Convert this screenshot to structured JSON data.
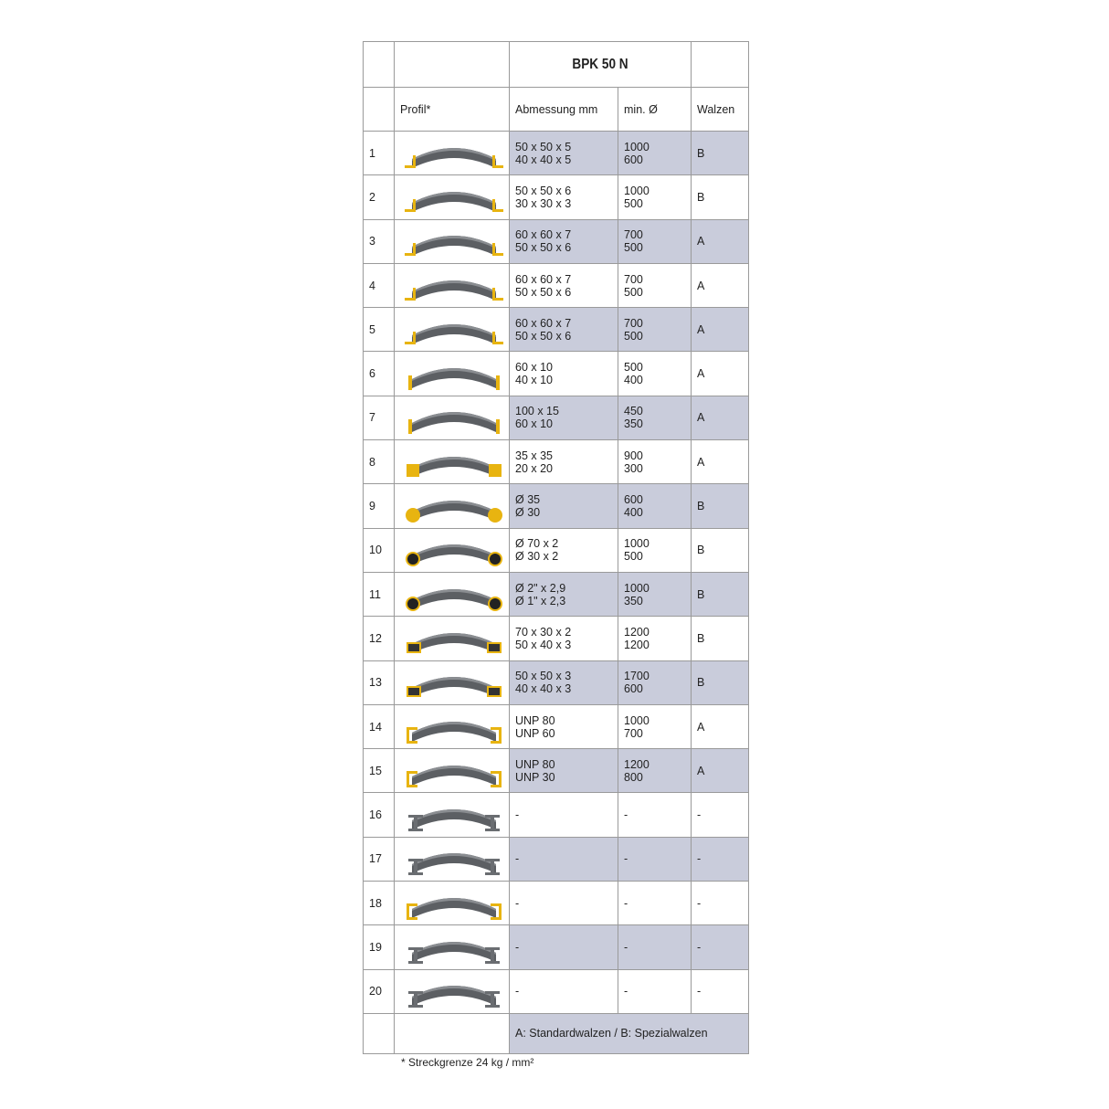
{
  "title": "BPK 50 N",
  "headers": {
    "profile": "Profil*",
    "dimension": "Abmessung mm",
    "min_diameter": "min. Ø",
    "rollers": "Walzen"
  },
  "shade_color": "#c9ccdb",
  "accent_color": "#f0b800",
  "rows": [
    {
      "n": "1",
      "icon": "angle-profile-icon",
      "d1": "50 x 50 x 5",
      "d2": "40 x 40 x 5",
      "m1": "1000",
      "m2": "600",
      "w": "B"
    },
    {
      "n": "2",
      "icon": "angle-profile-icon",
      "d1": "50 x 50 x 6",
      "d2": "30 x 30 x 3",
      "m1": "1000",
      "m2": "500",
      "w": "B"
    },
    {
      "n": "3",
      "icon": "angle-profile-icon",
      "d1": "60 x 60 x 7",
      "d2": "50 x 50 x 6",
      "m1": "700",
      "m2": "500",
      "w": "A"
    },
    {
      "n": "4",
      "icon": "angle-profile-icon",
      "d1": "60 x 60 x 7",
      "d2": "50 x 50 x 6",
      "m1": "700",
      "m2": "500",
      "w": "A"
    },
    {
      "n": "5",
      "icon": "angle-profile-icon",
      "d1": "60 x 60 x 7",
      "d2": "50 x 50 x 6",
      "m1": "700",
      "m2": "500",
      "w": "A"
    },
    {
      "n": "6",
      "icon": "flat-bar-profile-icon",
      "d1": "60 x 10",
      "d2": "40 x 10",
      "m1": "500",
      "m2": "400",
      "w": "A"
    },
    {
      "n": "7",
      "icon": "flat-bar-profile-icon",
      "d1": "100 x 15",
      "d2": "60 x 10",
      "m1": "450",
      "m2": "350",
      "w": "A"
    },
    {
      "n": "8",
      "icon": "square-bar-profile-icon",
      "d1": "35 x 35",
      "d2": "20 x 20",
      "m1": "900",
      "m2": "300",
      "w": "A"
    },
    {
      "n": "9",
      "icon": "round-bar-profile-icon",
      "d1": "Ø 35",
      "d2": "Ø 30",
      "m1": "600",
      "m2": "400",
      "w": "B"
    },
    {
      "n": "10",
      "icon": "round-tube-profile-icon",
      "d1": "Ø 70 x 2",
      "d2": "Ø 30 x 2",
      "m1": "1000",
      "m2": "500",
      "w": "B"
    },
    {
      "n": "11",
      "icon": "round-tube-profile-icon",
      "d1": "Ø 2\" x 2,9",
      "d2": "Ø 1\" x 2,3",
      "m1": "1000",
      "m2": "350",
      "w": "B"
    },
    {
      "n": "12",
      "icon": "rect-tube-profile-icon",
      "d1": "70 x 30 x 2",
      "d2": "50 x 40 x 3",
      "m1": "1200",
      "m2": "1200",
      "w": "B"
    },
    {
      "n": "13",
      "icon": "square-tube-profile-icon",
      "d1": "50 x 50 x 3",
      "d2": "40 x 40 x 3",
      "m1": "1700",
      "m2": "600",
      "w": "B"
    },
    {
      "n": "14",
      "icon": "channel-profile-icon",
      "d1": "UNP 80",
      "d2": "UNP 60",
      "m1": "1000",
      "m2": "700",
      "w": "A"
    },
    {
      "n": "15",
      "icon": "channel-profile-icon",
      "d1": "UNP 80",
      "d2": "UNP 30",
      "m1": "1200",
      "m2": "800",
      "w": "A"
    },
    {
      "n": "16",
      "icon": "beam-profile-icon",
      "d1": "-",
      "d2": "",
      "m1": "-",
      "m2": "",
      "w": "-"
    },
    {
      "n": "17",
      "icon": "beam-profile-icon",
      "d1": "-",
      "d2": "",
      "m1": "-",
      "m2": "",
      "w": "-"
    },
    {
      "n": "18",
      "icon": "channel-profile-icon",
      "d1": "-",
      "d2": "",
      "m1": "-",
      "m2": "",
      "w": "-"
    },
    {
      "n": "19",
      "icon": "tee-profile-icon",
      "d1": "-",
      "d2": "",
      "m1": "-",
      "m2": "",
      "w": "-"
    },
    {
      "n": "20",
      "icon": "beam-profile-icon",
      "d1": "-",
      "d2": "",
      "m1": "-",
      "m2": "",
      "w": "-"
    }
  ],
  "legend": "A: Standardwalzen / B: Spezialwalzen",
  "footnote": "* Streckgrenze 24 kg / mm²"
}
